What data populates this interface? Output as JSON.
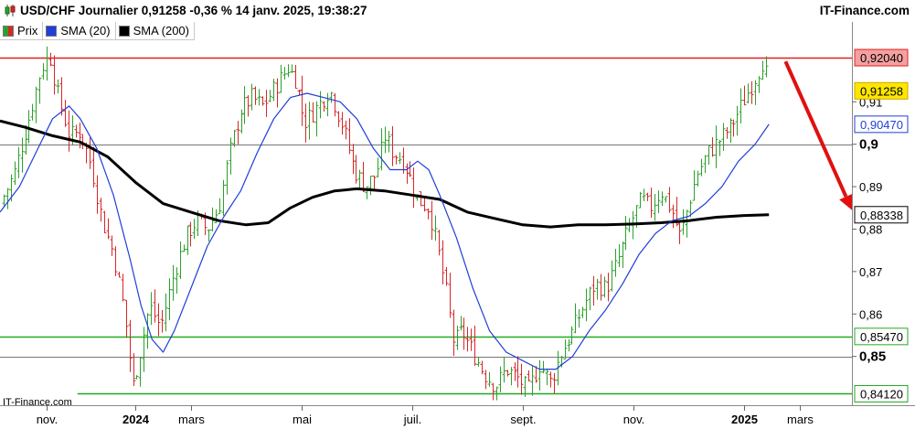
{
  "header": {
    "title": "USD/CHF Journalier 0,91258 -0,36 % 14 janv. 2025, 19:38:27",
    "brand": "IT-Finance.com"
  },
  "legend": [
    {
      "label": "Prix",
      "color": "#2ca02c",
      "icon": "price-swatch"
    },
    {
      "label": "SMA (20)",
      "color": "#1f3fd8",
      "icon": "sma20-swatch"
    },
    {
      "label": "SMA (200)",
      "color": "#000000",
      "icon": "sma200-swatch"
    }
  ],
  "watermark": "IT-Finance.com",
  "colors": {
    "up": "#2ca02c",
    "down": "#d62728",
    "sma20": "#1f3fd8",
    "sma200": "#000000",
    "resistance": "#e02020",
    "support": "#22aa22",
    "arrow": "#e01010"
  },
  "chart_data": {
    "type": "ohlc",
    "title": "USD/CHF Journalier",
    "ylim": [
      0.8385,
      0.9245
    ],
    "y_ticks": [
      {
        "value": 0.85,
        "label": "0,85",
        "major": true
      },
      {
        "value": 0.86,
        "label": "0,86"
      },
      {
        "value": 0.87,
        "label": "0,87"
      },
      {
        "value": 0.88,
        "label": "0,88"
      },
      {
        "value": 0.89,
        "label": "0,89"
      },
      {
        "value": 0.9,
        "label": "0,9",
        "major": true
      },
      {
        "value": 0.91,
        "label": "0,91"
      }
    ],
    "x_ticks": [
      {
        "month_index": 0.4,
        "label": "nov."
      },
      {
        "month_index": 2.0,
        "label": "2024",
        "major": true
      },
      {
        "month_index": 3.0,
        "label": "mars"
      },
      {
        "month_index": 5.0,
        "label": "mai"
      },
      {
        "month_index": 7.0,
        "label": "juil."
      },
      {
        "month_index": 9.0,
        "label": "sept."
      },
      {
        "month_index": 11.0,
        "label": "nov."
      },
      {
        "month_index": 13.0,
        "label": "2025",
        "major": true
      },
      {
        "month_index": 14.0,
        "label": "mars"
      }
    ],
    "x_range_months": [
      -0.45,
      14.95
    ],
    "last_bar_month": 13.45,
    "horizontal_levels": [
      {
        "value": 0.9204,
        "label": "0,92040",
        "kind": "resistance"
      },
      {
        "value": 0.9,
        "label": "0,9",
        "kind": "round"
      },
      {
        "value": 0.85,
        "label": "0,85",
        "kind": "round"
      },
      {
        "value": 0.8547,
        "label": "0,85470",
        "kind": "support"
      },
      {
        "value": 0.8412,
        "label": "0,84120",
        "kind": "support"
      }
    ],
    "price_tags": [
      {
        "value": 0.9204,
        "label": "0,92040",
        "kind": "resistance"
      },
      {
        "value": 0.91258,
        "label": "0,91258",
        "kind": "last"
      },
      {
        "value": 0.9047,
        "label": "0,90470",
        "kind": "sma20"
      },
      {
        "value": 0.88338,
        "label": "0,88338",
        "kind": "sma200"
      },
      {
        "value": 0.8547,
        "label": "0,85470",
        "kind": "support"
      },
      {
        "value": 0.8412,
        "label": "0,84120",
        "kind": "support"
      }
    ],
    "price_path": [
      {
        "m": -0.45,
        "v": 0.886
      },
      {
        "m": -0.2,
        "v": 0.893
      },
      {
        "m": 0.05,
        "v": 0.905
      },
      {
        "m": 0.3,
        "v": 0.918
      },
      {
        "m": 0.45,
        "v": 0.921
      },
      {
        "m": 0.6,
        "v": 0.911
      },
      {
        "m": 0.8,
        "v": 0.902
      },
      {
        "m": 1.0,
        "v": 0.903
      },
      {
        "m": 1.2,
        "v": 0.895
      },
      {
        "m": 1.4,
        "v": 0.882
      },
      {
        "m": 1.6,
        "v": 0.874
      },
      {
        "m": 1.8,
        "v": 0.86
      },
      {
        "m": 1.95,
        "v": 0.843
      },
      {
        "m": 2.1,
        "v": 0.852
      },
      {
        "m": 2.25,
        "v": 0.862
      },
      {
        "m": 2.45,
        "v": 0.857
      },
      {
        "m": 2.7,
        "v": 0.87
      },
      {
        "m": 2.9,
        "v": 0.878
      },
      {
        "m": 3.1,
        "v": 0.882
      },
      {
        "m": 3.3,
        "v": 0.88
      },
      {
        "m": 3.5,
        "v": 0.885
      },
      {
        "m": 3.7,
        "v": 0.898
      },
      {
        "m": 3.9,
        "v": 0.908
      },
      {
        "m": 4.1,
        "v": 0.911
      },
      {
        "m": 4.3,
        "v": 0.909
      },
      {
        "m": 4.5,
        "v": 0.913
      },
      {
        "m": 4.75,
        "v": 0.918
      },
      {
        "m": 4.9,
        "v": 0.915
      },
      {
        "m": 5.05,
        "v": 0.905
      },
      {
        "m": 5.3,
        "v": 0.909
      },
      {
        "m": 5.5,
        "v": 0.913
      },
      {
        "m": 5.75,
        "v": 0.904
      },
      {
        "m": 5.95,
        "v": 0.894
      },
      {
        "m": 6.15,
        "v": 0.89
      },
      {
        "m": 6.35,
        "v": 0.893
      },
      {
        "m": 6.5,
        "v": 0.902
      },
      {
        "m": 6.65,
        "v": 0.898
      },
      {
        "m": 6.85,
        "v": 0.896
      },
      {
        "m": 7.1,
        "v": 0.887
      },
      {
        "m": 7.3,
        "v": 0.885
      },
      {
        "m": 7.45,
        "v": 0.876
      },
      {
        "m": 7.6,
        "v": 0.866
      },
      {
        "m": 7.75,
        "v": 0.853
      },
      {
        "m": 7.9,
        "v": 0.856
      },
      {
        "m": 8.1,
        "v": 0.851
      },
      {
        "m": 8.3,
        "v": 0.846
      },
      {
        "m": 8.5,
        "v": 0.843
      },
      {
        "m": 8.7,
        "v": 0.847
      },
      {
        "m": 8.9,
        "v": 0.845
      },
      {
        "m": 9.1,
        "v": 0.842
      },
      {
        "m": 9.3,
        "v": 0.848
      },
      {
        "m": 9.5,
        "v": 0.844
      },
      {
        "m": 9.7,
        "v": 0.851
      },
      {
        "m": 9.9,
        "v": 0.856
      },
      {
        "m": 10.1,
        "v": 0.862
      },
      {
        "m": 10.3,
        "v": 0.867
      },
      {
        "m": 10.5,
        "v": 0.866
      },
      {
        "m": 10.7,
        "v": 0.872
      },
      {
        "m": 10.85,
        "v": 0.878
      },
      {
        "m": 11.0,
        "v": 0.883
      },
      {
        "m": 11.15,
        "v": 0.887
      },
      {
        "m": 11.3,
        "v": 0.885
      },
      {
        "m": 11.5,
        "v": 0.889
      },
      {
        "m": 11.7,
        "v": 0.884
      },
      {
        "m": 11.85,
        "v": 0.878
      },
      {
        "m": 12.0,
        "v": 0.886
      },
      {
        "m": 12.15,
        "v": 0.893
      },
      {
        "m": 12.35,
        "v": 0.898
      },
      {
        "m": 12.55,
        "v": 0.901
      },
      {
        "m": 12.75,
        "v": 0.904
      },
      {
        "m": 12.95,
        "v": 0.909
      },
      {
        "m": 13.1,
        "v": 0.913
      },
      {
        "m": 13.25,
        "v": 0.917
      },
      {
        "m": 13.35,
        "v": 0.92
      },
      {
        "m": 13.45,
        "v": 0.9126
      }
    ],
    "sma20": [
      {
        "m": -0.45,
        "v": 0.884
      },
      {
        "m": -0.1,
        "v": 0.89
      },
      {
        "m": 0.2,
        "v": 0.898
      },
      {
        "m": 0.5,
        "v": 0.906
      },
      {
        "m": 0.8,
        "v": 0.909
      },
      {
        "m": 1.0,
        "v": 0.906
      },
      {
        "m": 1.3,
        "v": 0.899
      },
      {
        "m": 1.6,
        "v": 0.888
      },
      {
        "m": 1.9,
        "v": 0.873
      },
      {
        "m": 2.1,
        "v": 0.862
      },
      {
        "m": 2.3,
        "v": 0.854
      },
      {
        "m": 2.5,
        "v": 0.851
      },
      {
        "m": 2.7,
        "v": 0.856
      },
      {
        "m": 3.0,
        "v": 0.866
      },
      {
        "m": 3.3,
        "v": 0.876
      },
      {
        "m": 3.6,
        "v": 0.883
      },
      {
        "m": 3.9,
        "v": 0.889
      },
      {
        "m": 4.2,
        "v": 0.898
      },
      {
        "m": 4.5,
        "v": 0.906
      },
      {
        "m": 4.8,
        "v": 0.911
      },
      {
        "m": 5.1,
        "v": 0.912
      },
      {
        "m": 5.4,
        "v": 0.911
      },
      {
        "m": 5.7,
        "v": 0.91
      },
      {
        "m": 6.0,
        "v": 0.906
      },
      {
        "m": 6.3,
        "v": 0.899
      },
      {
        "m": 6.6,
        "v": 0.894
      },
      {
        "m": 6.9,
        "v": 0.894
      },
      {
        "m": 7.1,
        "v": 0.896
      },
      {
        "m": 7.3,
        "v": 0.894
      },
      {
        "m": 7.5,
        "v": 0.888
      },
      {
        "m": 7.8,
        "v": 0.878
      },
      {
        "m": 8.1,
        "v": 0.866
      },
      {
        "m": 8.4,
        "v": 0.856
      },
      {
        "m": 8.7,
        "v": 0.851
      },
      {
        "m": 9.0,
        "v": 0.849
      },
      {
        "m": 9.3,
        "v": 0.847
      },
      {
        "m": 9.6,
        "v": 0.847
      },
      {
        "m": 9.9,
        "v": 0.85
      },
      {
        "m": 10.2,
        "v": 0.856
      },
      {
        "m": 10.5,
        "v": 0.861
      },
      {
        "m": 10.8,
        "v": 0.867
      },
      {
        "m": 11.1,
        "v": 0.874
      },
      {
        "m": 11.4,
        "v": 0.879
      },
      {
        "m": 11.7,
        "v": 0.882
      },
      {
        "m": 12.0,
        "v": 0.883
      },
      {
        "m": 12.3,
        "v": 0.886
      },
      {
        "m": 12.6,
        "v": 0.89
      },
      {
        "m": 12.9,
        "v": 0.896
      },
      {
        "m": 13.2,
        "v": 0.9
      },
      {
        "m": 13.45,
        "v": 0.9047
      }
    ],
    "sma200": [
      {
        "m": -0.45,
        "v": 0.9055
      },
      {
        "m": 0.0,
        "v": 0.904
      },
      {
        "m": 0.5,
        "v": 0.902
      },
      {
        "m": 1.0,
        "v": 0.9005
      },
      {
        "m": 1.5,
        "v": 0.897
      },
      {
        "m": 2.0,
        "v": 0.891
      },
      {
        "m": 2.5,
        "v": 0.886
      },
      {
        "m": 3.0,
        "v": 0.884
      },
      {
        "m": 3.5,
        "v": 0.882
      },
      {
        "m": 4.0,
        "v": 0.881
      },
      {
        "m": 4.4,
        "v": 0.8815
      },
      {
        "m": 4.8,
        "v": 0.885
      },
      {
        "m": 5.2,
        "v": 0.8875
      },
      {
        "m": 5.6,
        "v": 0.889
      },
      {
        "m": 6.0,
        "v": 0.8895
      },
      {
        "m": 6.5,
        "v": 0.889
      },
      {
        "m": 7.0,
        "v": 0.888
      },
      {
        "m": 7.5,
        "v": 0.887
      },
      {
        "m": 8.0,
        "v": 0.884
      },
      {
        "m": 8.5,
        "v": 0.8825
      },
      {
        "m": 9.0,
        "v": 0.881
      },
      {
        "m": 9.5,
        "v": 0.8805
      },
      {
        "m": 10.0,
        "v": 0.881
      },
      {
        "m": 10.5,
        "v": 0.881
      },
      {
        "m": 11.0,
        "v": 0.8812
      },
      {
        "m": 11.5,
        "v": 0.8815
      },
      {
        "m": 12.0,
        "v": 0.882
      },
      {
        "m": 12.5,
        "v": 0.8828
      },
      {
        "m": 13.0,
        "v": 0.8832
      },
      {
        "m": 13.45,
        "v": 0.8834
      }
    ],
    "arrow": {
      "from": {
        "m": 13.75,
        "v": 0.9195
      },
      "to": {
        "m": 14.95,
        "v": 0.8845
      },
      "direction": "down"
    }
  }
}
